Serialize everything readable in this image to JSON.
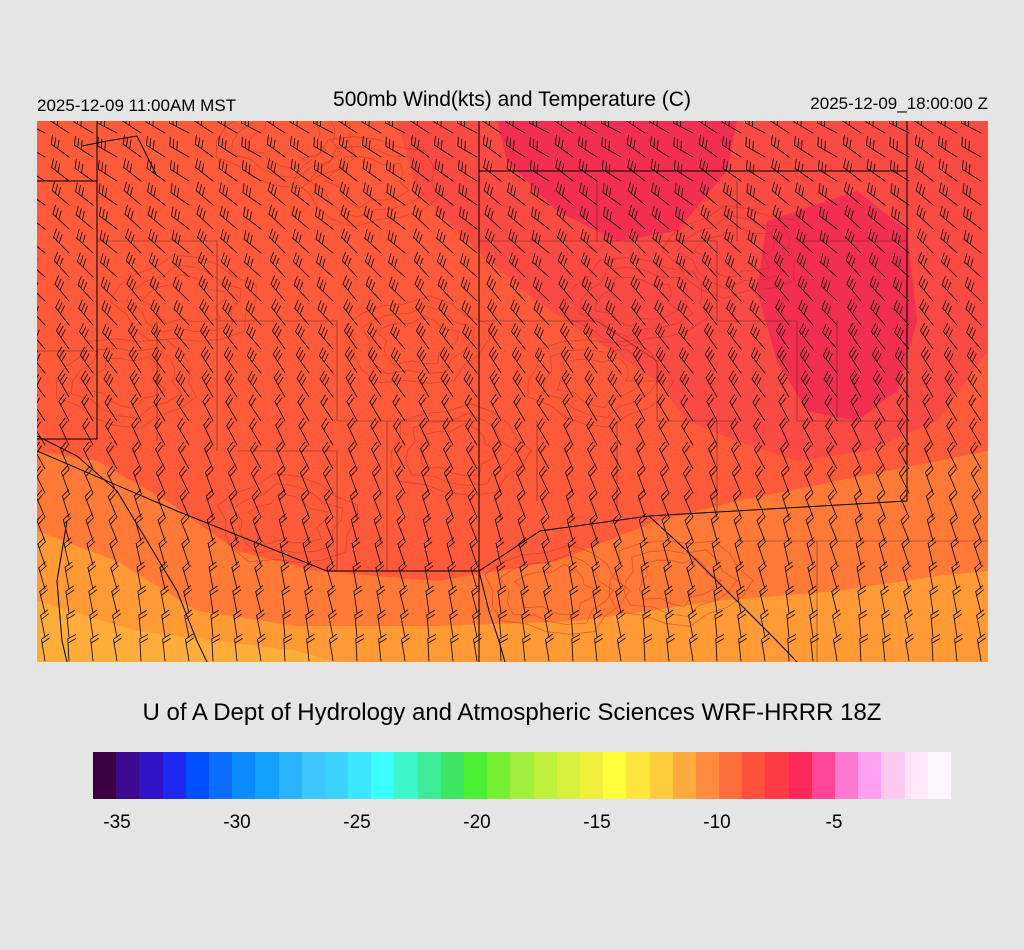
{
  "header": {
    "valid_local": "2025-12-09 11:00AM MST",
    "title": "500mb Wind(kts) and Temperature (C)",
    "valid_utc": "2025-12-09_18:00:00 Z"
  },
  "credit": "U of A Dept of Hydrology and Atmospheric Sciences WRF-HRRR 18Z",
  "legend": {
    "colors": [
      "#3a0040",
      "#3c0a8c",
      "#3214c8",
      "#1e28f0",
      "#0050ff",
      "#0a6eff",
      "#0a8cff",
      "#14a0ff",
      "#28b4ff",
      "#3cc8ff",
      "#3cd2ff",
      "#3ce6ff",
      "#3cffff",
      "#3cf5c8",
      "#3ceb96",
      "#3ce664",
      "#4bf032",
      "#78f032",
      "#a0f03c",
      "#bef03c",
      "#d7f03c",
      "#f0f03c",
      "#ffff3c",
      "#ffe63c",
      "#ffcd3c",
      "#ffaa3c",
      "#ff8c3c",
      "#ff6e3c",
      "#ff503c",
      "#ff3c46",
      "#ff285a",
      "#ff4696",
      "#ff78d2",
      "#ffa0f0",
      "#ffc8f0",
      "#ffe6fa",
      "#fff5fc"
    ],
    "ticks": [
      "-35",
      "-30",
      "-25",
      "-20",
      "-15",
      "-10",
      "-5"
    ]
  },
  "map": {
    "temp_zone_colors": [
      "#f22f52",
      "#fa4a44",
      "#ff5a3a",
      "#ff7a36",
      "#ff9a35",
      "#ffad3a"
    ],
    "wind_barb_color": "#000000",
    "boundary_color": "#000000",
    "terrain_contour_color": "#b02a10"
  }
}
